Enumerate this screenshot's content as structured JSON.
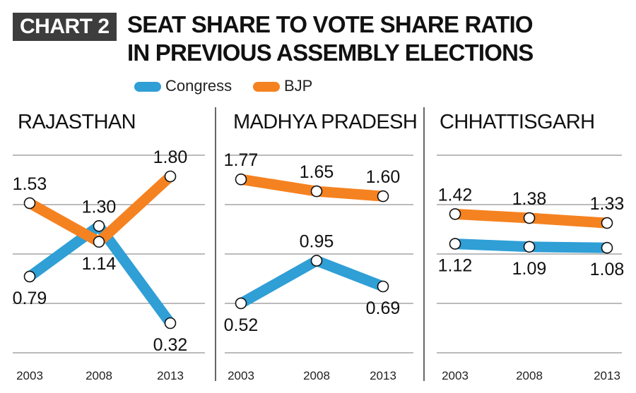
{
  "header": {
    "badge": "CHART 2",
    "title_line1": "SEAT SHARE TO VOTE SHARE RATIO",
    "title_line2": "IN PREVIOUS ASSEMBLY ELECTIONS"
  },
  "legend": [
    {
      "label": "Congress",
      "color": "#2f9fd6"
    },
    {
      "label": "BJP",
      "color": "#f58220"
    }
  ],
  "chart_data": [
    {
      "type": "line",
      "title": "RAJASTHAN",
      "x": [
        "2003",
        "2008",
        "2013"
      ],
      "series": [
        {
          "name": "Congress",
          "color": "#2f9fd6",
          "values": [
            0.79,
            1.3,
            0.32
          ],
          "labels": [
            "0.79",
            "1.30",
            "0.32"
          ],
          "label_pos": [
            "below",
            "above",
            "below"
          ]
        },
        {
          "name": "BJP",
          "color": "#f58220",
          "values": [
            1.53,
            1.14,
            1.8
          ],
          "labels": [
            "1.53",
            "1.14",
            "1.80"
          ],
          "label_pos": [
            "above",
            "below",
            "above"
          ]
        }
      ]
    },
    {
      "type": "line",
      "title": "MADHYA PRADESH",
      "x": [
        "2003",
        "2008",
        "2013"
      ],
      "series": [
        {
          "name": "Congress",
          "color": "#2f9fd6",
          "values": [
            0.52,
            0.95,
            0.69
          ],
          "labels": [
            "0.52",
            "0.95",
            "0.69"
          ],
          "label_pos": [
            "below",
            "above",
            "below"
          ]
        },
        {
          "name": "BJP",
          "color": "#f58220",
          "values": [
            1.77,
            1.65,
            1.6
          ],
          "labels": [
            "1.77",
            "1.65",
            "1.60"
          ],
          "label_pos": [
            "above",
            "above",
            "above"
          ]
        }
      ]
    },
    {
      "type": "line",
      "title": "CHHATTISGARH",
      "x": [
        "2003",
        "2008",
        "2013"
      ],
      "series": [
        {
          "name": "Congress",
          "color": "#2f9fd6",
          "values": [
            1.12,
            1.09,
            1.08
          ],
          "labels": [
            "1.12",
            "1.09",
            "1.08"
          ],
          "label_pos": [
            "below",
            "below",
            "below"
          ]
        },
        {
          "name": "BJP",
          "color": "#f58220",
          "values": [
            1.42,
            1.38,
            1.33
          ],
          "labels": [
            "1.42",
            "1.38",
            "1.33"
          ],
          "label_pos": [
            "above",
            "above",
            "above"
          ]
        }
      ]
    }
  ]
}
